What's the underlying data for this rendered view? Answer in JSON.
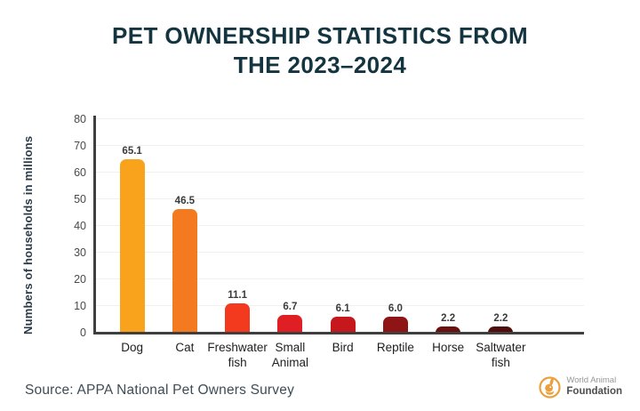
{
  "title": {
    "line1": "PET OWNERSHIP STATISTICS FROM",
    "line2": "THE 2023–2024"
  },
  "chart_data": {
    "type": "bar",
    "title": "Pet Ownership Statistics from the 2023–2024",
    "categories": [
      "Dog",
      "Cat",
      "Freshwater fish",
      "Small Animal",
      "Bird",
      "Reptile",
      "Horse",
      "Saltwater fish"
    ],
    "category_display": [
      "Dog",
      "Cat",
      "Freshwater\nfish",
      "Small\nAnimal",
      "Bird",
      "Reptile",
      "Horse",
      "Saltwater\nfish"
    ],
    "values": [
      65.1,
      46.5,
      11.1,
      6.7,
      6.1,
      6.0,
      2.2,
      2.2
    ],
    "value_labels": [
      "65.1",
      "46.5",
      "11.1",
      "6.7",
      "6.1",
      "6.0",
      "2.2",
      "2.2"
    ],
    "bar_colors": [
      "#F9A21B",
      "#F47A1F",
      "#F43A1E",
      "#DF1F24",
      "#C5171C",
      "#8F1415",
      "#6C100F",
      "#500D0C"
    ],
    "xlabel": "",
    "ylabel": "Numbers of households in millions",
    "ylim": [
      0,
      80
    ],
    "yticks": [
      0,
      10,
      20,
      30,
      40,
      50,
      60,
      70,
      80
    ],
    "grid": true,
    "legend": "none"
  },
  "footer": {
    "source": "Source: APPA National Pet Owners Survey"
  },
  "logo": {
    "line1": "World Animal",
    "line2": "Foundation",
    "color": "#E9A13B"
  },
  "colors": {
    "title": "#143440",
    "axis": "#3F3F3F",
    "grid": "#F1EFEF",
    "ticks": "#494949",
    "xlabels": "#1E1E1E",
    "values": "#3B3B3B",
    "source": "#3F4C55"
  }
}
